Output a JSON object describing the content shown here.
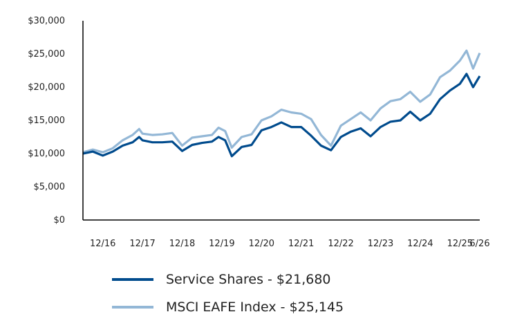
{
  "chart_data": {
    "type": "line",
    "title": "",
    "xlabel": "",
    "ylabel": "",
    "ylim": [
      0,
      30000
    ],
    "y_ticks": [
      0,
      5000,
      10000,
      15000,
      20000,
      25000,
      30000
    ],
    "y_tick_labels": [
      "$0",
      "$5,000",
      "$10,000",
      "$15,000",
      "$20,000",
      "$25,000",
      "$30,000"
    ],
    "x_range": [
      "2016-06",
      "2026-06"
    ],
    "x_ticks": [
      "2016-12",
      "2017-12",
      "2018-12",
      "2019-12",
      "2020-12",
      "2021-12",
      "2022-12",
      "2023-12",
      "2024-12",
      "2025-12",
      "2026-06"
    ],
    "x_tick_labels": [
      "12/16",
      "12/17",
      "12/18",
      "12/19",
      "12/20",
      "12/21",
      "12/22",
      "12/23",
      "12/24",
      "12/25",
      "6/26"
    ],
    "grid": false,
    "legend_position": "bottom-left",
    "series": [
      {
        "name": "Service Shares - $21,680",
        "color": "#004b8d",
        "points": [
          [
            "2016-06",
            10000
          ],
          [
            "2016-09",
            10300
          ],
          [
            "2016-12",
            9700
          ],
          [
            "2017-03",
            10300
          ],
          [
            "2017-06",
            11200
          ],
          [
            "2017-09",
            11700
          ],
          [
            "2017-11",
            12500
          ],
          [
            "2017-12",
            12000
          ],
          [
            "2018-03",
            11700
          ],
          [
            "2018-06",
            11700
          ],
          [
            "2018-09",
            11800
          ],
          [
            "2018-12",
            10400
          ],
          [
            "2019-03",
            11300
          ],
          [
            "2019-06",
            11600
          ],
          [
            "2019-09",
            11800
          ],
          [
            "2019-11",
            12500
          ],
          [
            "2020-01",
            12000
          ],
          [
            "2020-03",
            9600
          ],
          [
            "2020-06",
            11000
          ],
          [
            "2020-09",
            11300
          ],
          [
            "2020-12",
            13500
          ],
          [
            "2021-03",
            14000
          ],
          [
            "2021-06",
            14700
          ],
          [
            "2021-09",
            14000
          ],
          [
            "2021-12",
            14000
          ],
          [
            "2022-03",
            12700
          ],
          [
            "2022-06",
            11200
          ],
          [
            "2022-09",
            10500
          ],
          [
            "2022-12",
            12500
          ],
          [
            "2023-03",
            13300
          ],
          [
            "2023-06",
            13800
          ],
          [
            "2023-09",
            12600
          ],
          [
            "2023-12",
            14000
          ],
          [
            "2024-03",
            14800
          ],
          [
            "2024-06",
            15000
          ],
          [
            "2024-09",
            16300
          ],
          [
            "2024-12",
            15000
          ],
          [
            "2025-03",
            16000
          ],
          [
            "2025-06",
            18200
          ],
          [
            "2025-09",
            19500
          ],
          [
            "2025-12",
            20500
          ],
          [
            "2026-02",
            22000
          ],
          [
            "2026-04",
            20000
          ],
          [
            "2026-06",
            21680
          ]
        ]
      },
      {
        "name": "MSCI EAFE Index - $25,145",
        "color": "#93b7d6",
        "points": [
          [
            "2016-06",
            10200
          ],
          [
            "2016-09",
            10600
          ],
          [
            "2016-12",
            10200
          ],
          [
            "2017-03",
            10800
          ],
          [
            "2017-06",
            12000
          ],
          [
            "2017-09",
            12800
          ],
          [
            "2017-11",
            13700
          ],
          [
            "2017-12",
            13000
          ],
          [
            "2018-03",
            12800
          ],
          [
            "2018-06",
            12900
          ],
          [
            "2018-09",
            13100
          ],
          [
            "2018-12",
            11200
          ],
          [
            "2019-03",
            12400
          ],
          [
            "2019-06",
            12600
          ],
          [
            "2019-09",
            12800
          ],
          [
            "2019-11",
            13900
          ],
          [
            "2020-01",
            13400
          ],
          [
            "2020-03",
            10900
          ],
          [
            "2020-06",
            12500
          ],
          [
            "2020-09",
            12900
          ],
          [
            "2020-12",
            15000
          ],
          [
            "2021-03",
            15600
          ],
          [
            "2021-06",
            16600
          ],
          [
            "2021-09",
            16200
          ],
          [
            "2021-12",
            16000
          ],
          [
            "2022-03",
            15200
          ],
          [
            "2022-06",
            12800
          ],
          [
            "2022-09",
            11200
          ],
          [
            "2022-12",
            14200
          ],
          [
            "2023-03",
            15200
          ],
          [
            "2023-06",
            16200
          ],
          [
            "2023-09",
            15000
          ],
          [
            "2023-12",
            16800
          ],
          [
            "2024-03",
            17900
          ],
          [
            "2024-06",
            18200
          ],
          [
            "2024-09",
            19300
          ],
          [
            "2024-12",
            17800
          ],
          [
            "2025-03",
            18900
          ],
          [
            "2025-06",
            21500
          ],
          [
            "2025-09",
            22500
          ],
          [
            "2025-12",
            24000
          ],
          [
            "2026-02",
            25500
          ],
          [
            "2026-04",
            22800
          ],
          [
            "2026-06",
            25145
          ]
        ]
      }
    ]
  }
}
